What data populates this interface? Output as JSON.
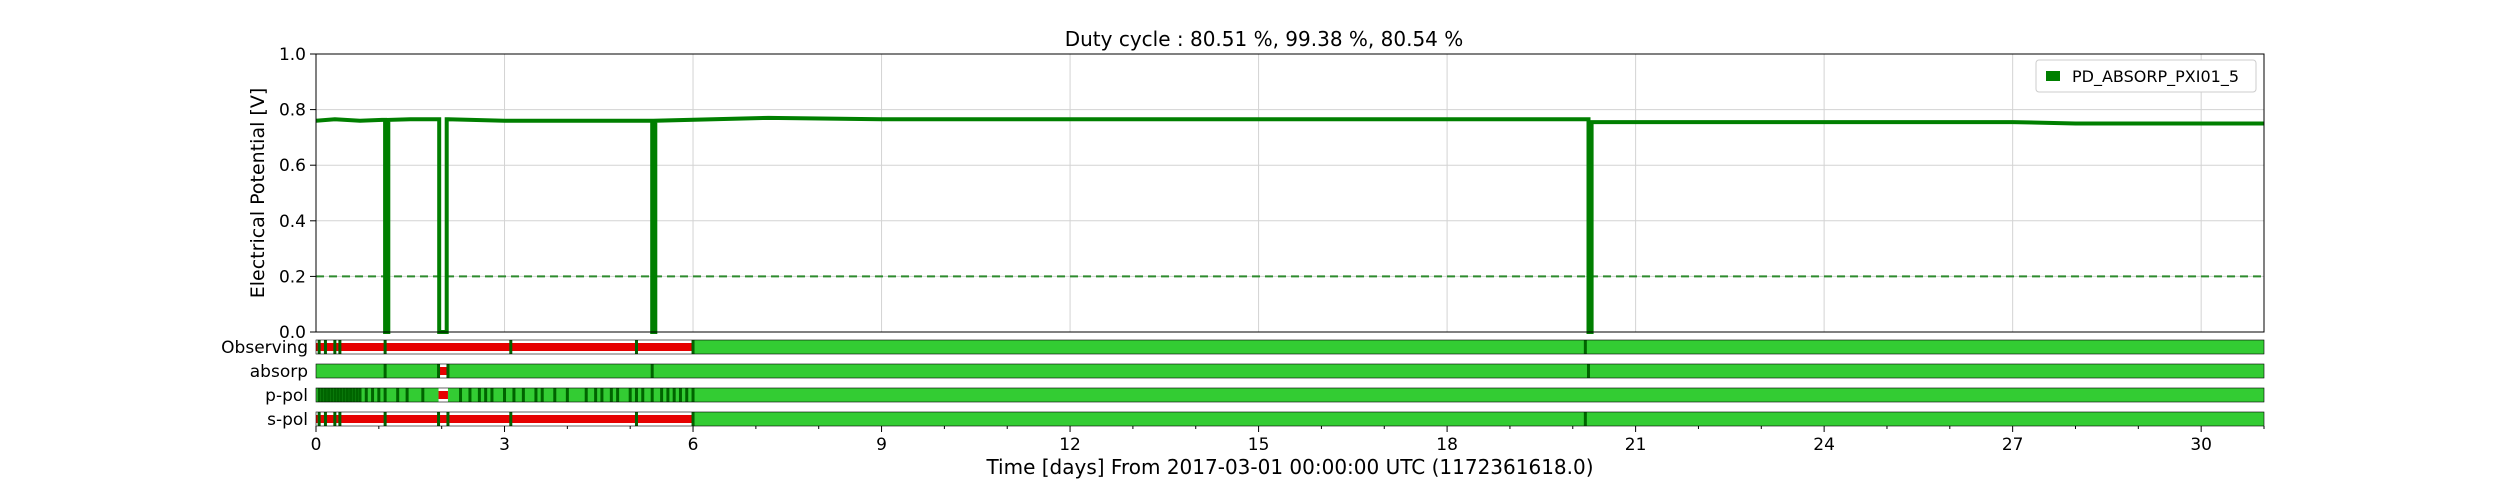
{
  "chart_data": {
    "type": "line",
    "title": "Duty cycle : 80.51 %, 99.38 %, 80.54 %",
    "xlabel": "Time [days] From 2017-03-01 00:00:00 UTC (1172361618.0)",
    "ylabel": "Electrical Potential [V]",
    "xlim": [
      0,
      31
    ],
    "ylim": [
      0,
      1.0
    ],
    "x_ticks": [
      0,
      3,
      6,
      9,
      12,
      15,
      18,
      21,
      24,
      27,
      30
    ],
    "y_ticks": [
      "0.0",
      "0.2",
      "0.4",
      "0.6",
      "0.8",
      "1.0"
    ],
    "grid": true,
    "legend_position": "top-right",
    "threshold": 0.2,
    "series": [
      {
        "name": "PD_ABSORP_PXI01_5",
        "color": "#007f00",
        "x": [
          0,
          0.3,
          0.7,
          1.05,
          1.1,
          1.1,
          1.15,
          1.15,
          1.5,
          1.95,
          1.96,
          1.96,
          2.08,
          2.08,
          2.1,
          2.1,
          3,
          5.3,
          5.35,
          5.35,
          5.4,
          5.4,
          7.2,
          9,
          12,
          15,
          18,
          20.2,
          20.25,
          20.25,
          20.3,
          20.3,
          21,
          24,
          27,
          28,
          31
        ],
        "y": [
          0.76,
          0.765,
          0.76,
          0.763,
          0.763,
          0.0,
          0.0,
          0.763,
          0.765,
          0.765,
          0.765,
          0.0,
          0.0,
          0.765,
          0.765,
          0.765,
          0.76,
          0.76,
          0.76,
          0.0,
          0.0,
          0.76,
          0.77,
          0.765,
          0.765,
          0.765,
          0.765,
          0.765,
          0.765,
          0.0,
          0.0,
          0.755,
          0.755,
          0.755,
          0.755,
          0.75,
          0.75
        ]
      }
    ],
    "segments": [
      {
        "label": "Observing",
        "active_color": "#33cc33",
        "inactive_color": "#e60000",
        "bounds_color": "#006400",
        "inactive": [
          [
            0,
            6
          ]
        ],
        "marks": [
          0.05,
          0.15,
          0.3,
          0.38,
          1.1,
          3.1,
          5.1,
          6.0,
          20.2
        ]
      },
      {
        "label": "absorp",
        "active_color": "#33cc33",
        "inactive_color": "#e60000",
        "bounds_color": "#006400",
        "inactive": [
          [
            1.95,
            2.1
          ]
        ],
        "marks": [
          1.1,
          1.95,
          2.1,
          5.35,
          20.25
        ]
      },
      {
        "label": "p-pol",
        "active_color": "#33cc33",
        "inactive_color": "#e60000",
        "bounds_color": "#006400",
        "inactive": [
          [
            1.95,
            2.1
          ]
        ],
        "marks": [
          0.05,
          0.1,
          0.15,
          0.2,
          0.25,
          0.3,
          0.35,
          0.4,
          0.45,
          0.5,
          0.55,
          0.6,
          0.65,
          0.7,
          0.8,
          0.9,
          1.0,
          1.1,
          1.3,
          1.45,
          1.7,
          2.3,
          2.45,
          2.6,
          2.7,
          2.8,
          3.0,
          3.15,
          3.3,
          3.5,
          3.6,
          3.8,
          4.0,
          4.3,
          4.45,
          4.55,
          4.7,
          4.8,
          5.0,
          5.1,
          5.2,
          5.35,
          5.5,
          5.6,
          5.7,
          5.8,
          5.9,
          6.0
        ]
      },
      {
        "label": "s-pol",
        "active_color": "#33cc33",
        "inactive_color": "#e60000",
        "bounds_color": "#006400",
        "inactive": [
          [
            0,
            6
          ]
        ],
        "marks": [
          0.05,
          0.15,
          0.3,
          0.38,
          1.1,
          1.95,
          2.1,
          3.1,
          5.1,
          6.0,
          20.2
        ]
      }
    ]
  }
}
